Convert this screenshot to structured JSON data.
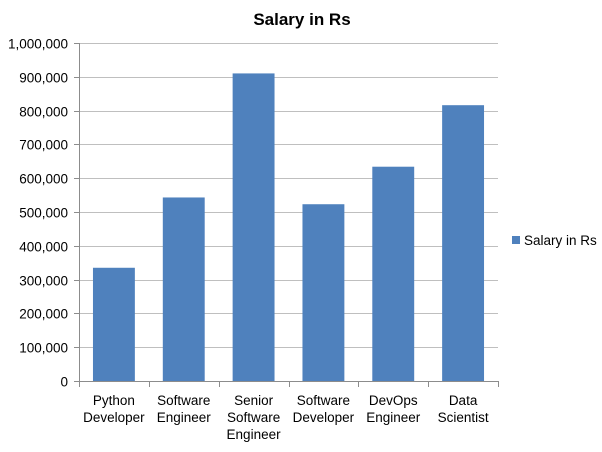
{
  "chart_data": {
    "type": "bar",
    "title": "Salary in Rs",
    "xlabel": "",
    "ylabel": "",
    "categories": [
      [
        "Python",
        "Developer"
      ],
      [
        "Software",
        "Engineer"
      ],
      [
        "Senior",
        "Software",
        "Engineer"
      ],
      [
        "Software",
        "Developer"
      ],
      [
        "DevOps",
        "Engineer"
      ],
      [
        "Data",
        "Scientist"
      ]
    ],
    "series": [
      {
        "name": "Salary in Rs",
        "color": "#4f81bd",
        "values": [
          335000,
          543000,
          910000,
          523000,
          634000,
          816000
        ]
      }
    ],
    "ylim": [
      0,
      1000000
    ],
    "yticks": [
      0,
      100000,
      200000,
      300000,
      400000,
      500000,
      600000,
      700000,
      800000,
      900000,
      1000000
    ],
    "ytick_labels": [
      "0",
      "100,000",
      "200,000",
      "300,000",
      "400,000",
      "500,000",
      "600,000",
      "700,000",
      "800,000",
      "900,000",
      "1,000,000"
    ],
    "grid": true,
    "legend_position": "right"
  }
}
